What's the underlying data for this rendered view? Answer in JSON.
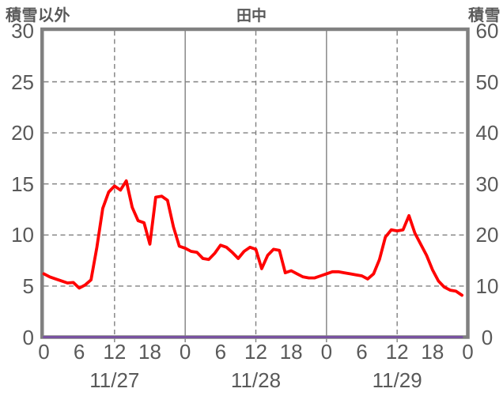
{
  "title": "田中",
  "left_axis": {
    "title": "積雪以外",
    "ticks": [
      30,
      25,
      20,
      15,
      10,
      5,
      0
    ],
    "min": 0,
    "max": 30
  },
  "right_axis": {
    "title": "積雪",
    "ticks": [
      60,
      50,
      40,
      30,
      20,
      10,
      0
    ],
    "min": 0,
    "max": 60
  },
  "x_axis": {
    "hour_labels": [
      "0",
      "6",
      "12",
      "18",
      "0",
      "6",
      "12",
      "18",
      "0",
      "6",
      "12",
      "18",
      "0"
    ],
    "date_labels": [
      "11/27",
      "11/28",
      "11/29"
    ]
  },
  "colors": {
    "line_red": "#ff0000",
    "line_purple": "#7852a0",
    "grid": "#808080",
    "border": "#808080",
    "text": "#595959"
  },
  "chart_data": {
    "type": "line",
    "title": "田中",
    "xlabel_unit": "hour",
    "x_range_hours": [
      0,
      72
    ],
    "left_ylim": [
      0,
      30
    ],
    "right_ylim": [
      0,
      60
    ],
    "grid": "dashed horizontal every 5 (left scale); dashed vertical at noon, solid at midnight",
    "series": [
      {
        "name": "積雪以外",
        "axis": "left",
        "color": "#ff0000",
        "values": [
          6.2,
          5.9,
          5.7,
          5.5,
          5.3,
          5.35,
          4.8,
          5.1,
          5.6,
          8.8,
          12.6,
          14.2,
          14.8,
          14.4,
          15.3,
          12.7,
          11.4,
          11.2,
          9.1,
          13.7,
          13.8,
          13.4,
          10.8,
          8.9,
          8.7,
          8.4,
          8.3,
          7.7,
          7.6,
          8.2,
          9.0,
          8.8,
          8.3,
          7.7,
          8.4,
          8.8,
          8.6,
          6.7,
          8.0,
          8.6,
          8.5,
          6.3,
          6.5,
          6.2,
          5.9,
          5.8,
          5.8,
          6.0,
          6.2,
          6.4,
          6.4,
          6.3,
          6.2,
          6.1,
          6.0,
          5.7,
          6.2,
          7.6,
          9.8,
          10.5,
          10.4,
          10.5,
          11.9,
          10.2,
          9.1,
          8.0,
          6.6,
          5.5,
          4.9,
          4.6,
          4.5,
          4.1
        ]
      },
      {
        "name": "積雪",
        "axis": "right",
        "color": "#7852a0",
        "values": [
          0,
          0,
          0,
          0,
          0,
          0,
          0,
          0,
          0,
          0,
          0,
          0,
          0,
          0,
          0,
          0,
          0,
          0,
          0,
          0,
          0,
          0,
          0,
          0,
          0,
          0,
          0,
          0,
          0,
          0,
          0,
          0,
          0,
          0,
          0,
          0,
          0,
          0,
          0,
          0,
          0,
          0,
          0,
          0,
          0,
          0,
          0,
          0,
          0,
          0,
          0,
          0,
          0,
          0,
          0,
          0,
          0,
          0,
          0,
          0,
          0,
          0,
          0,
          0,
          0,
          0,
          0,
          0,
          0,
          0,
          0,
          0
        ]
      }
    ]
  }
}
